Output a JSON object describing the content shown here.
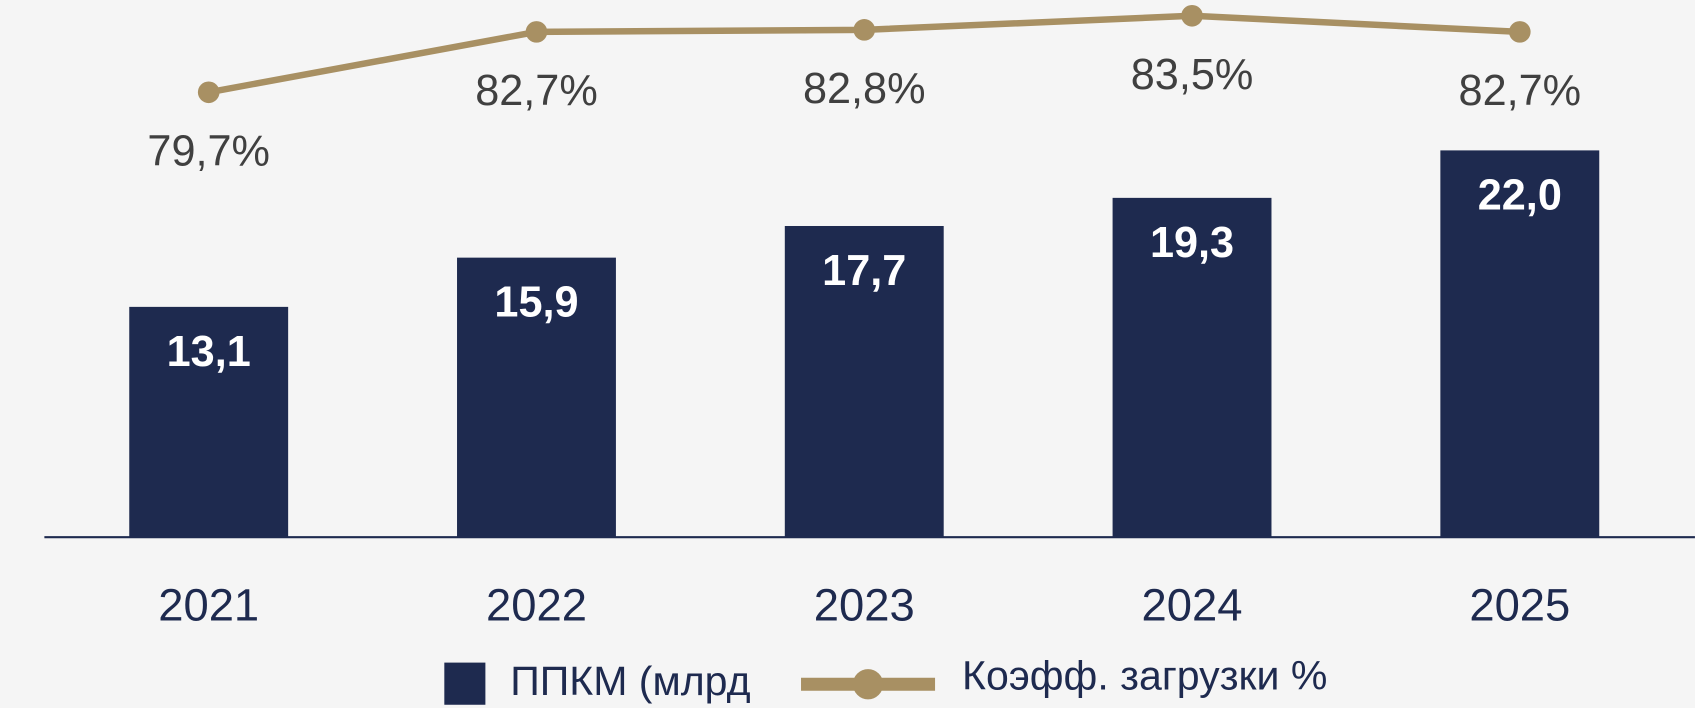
{
  "chart_data": {
    "type": "bar",
    "categories": [
      "2021",
      "2022",
      "2023",
      "2024",
      "2025"
    ],
    "series": [
      {
        "name": "ППКМ (млрд",
        "color": "#1e2a4f",
        "type": "bar",
        "values": [
          13.1,
          15.9,
          17.7,
          19.3,
          22.0
        ],
        "value_labels": [
          "13,1",
          "15,9",
          "17,7",
          "19,3",
          "22,0"
        ]
      },
      {
        "name": "Коэфф. загрузки %",
        "color": "#a89063",
        "type": "line",
        "axis": "y2",
        "values": [
          79.7,
          82.7,
          82.8,
          83.5,
          82.7
        ],
        "value_labels": [
          "79,7%",
          "82,7%",
          "82,8%",
          "83,5%",
          "82,7%"
        ]
      }
    ],
    "ylim": [
      0,
      30
    ],
    "y2lim": [
      57.6,
      83.8
    ],
    "legend": "bottom"
  }
}
